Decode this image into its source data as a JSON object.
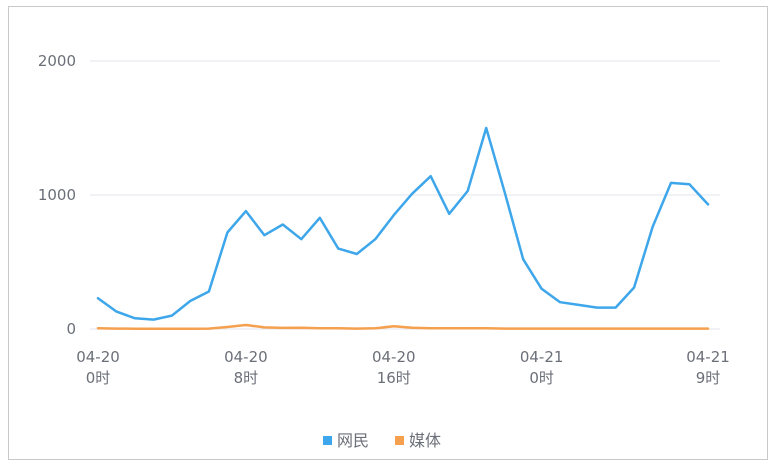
{
  "chart_data": {
    "type": "line",
    "x": [
      0,
      1,
      2,
      3,
      4,
      5,
      6,
      7,
      8,
      9,
      10,
      11,
      12,
      13,
      14,
      15,
      16,
      17,
      18,
      19,
      20,
      21,
      22,
      23,
      24,
      25,
      26,
      27,
      28,
      29,
      30,
      31,
      32,
      33
    ],
    "x_tick_labels": [
      {
        "x": 0,
        "line1": "04-20",
        "line2": "0时"
      },
      {
        "x": 8,
        "line1": "04-20",
        "line2": "8时"
      },
      {
        "x": 16,
        "line1": "04-20",
        "line2": "16时"
      },
      {
        "x": 24,
        "line1": "04-21",
        "line2": "0时"
      },
      {
        "x": 33,
        "line1": "04-21",
        "line2": "9时"
      }
    ],
    "y_ticks": [
      "0",
      "1000",
      "2000"
    ],
    "ylim": [
      0,
      2000
    ],
    "grid": true,
    "legend_position": "bottom",
    "series": [
      {
        "name": "网民",
        "color": "#3ea6ea",
        "values": [
          230,
          130,
          80,
          70,
          100,
          210,
          280,
          720,
          880,
          700,
          780,
          670,
          830,
          600,
          560,
          670,
          850,
          1010,
          1140,
          860,
          1030,
          1500,
          1020,
          520,
          300,
          200,
          180,
          160,
          160,
          310,
          760,
          1090,
          1080,
          930
        ]
      },
      {
        "name": "媒体",
        "color": "#f5a04e",
        "values": [
          5,
          3,
          2,
          2,
          2,
          2,
          3,
          15,
          30,
          12,
          8,
          10,
          5,
          5,
          3,
          5,
          20,
          10,
          5,
          5,
          5,
          5,
          3,
          3,
          3,
          3,
          3,
          3,
          3,
          3,
          3,
          3,
          3,
          3
        ]
      }
    ]
  }
}
